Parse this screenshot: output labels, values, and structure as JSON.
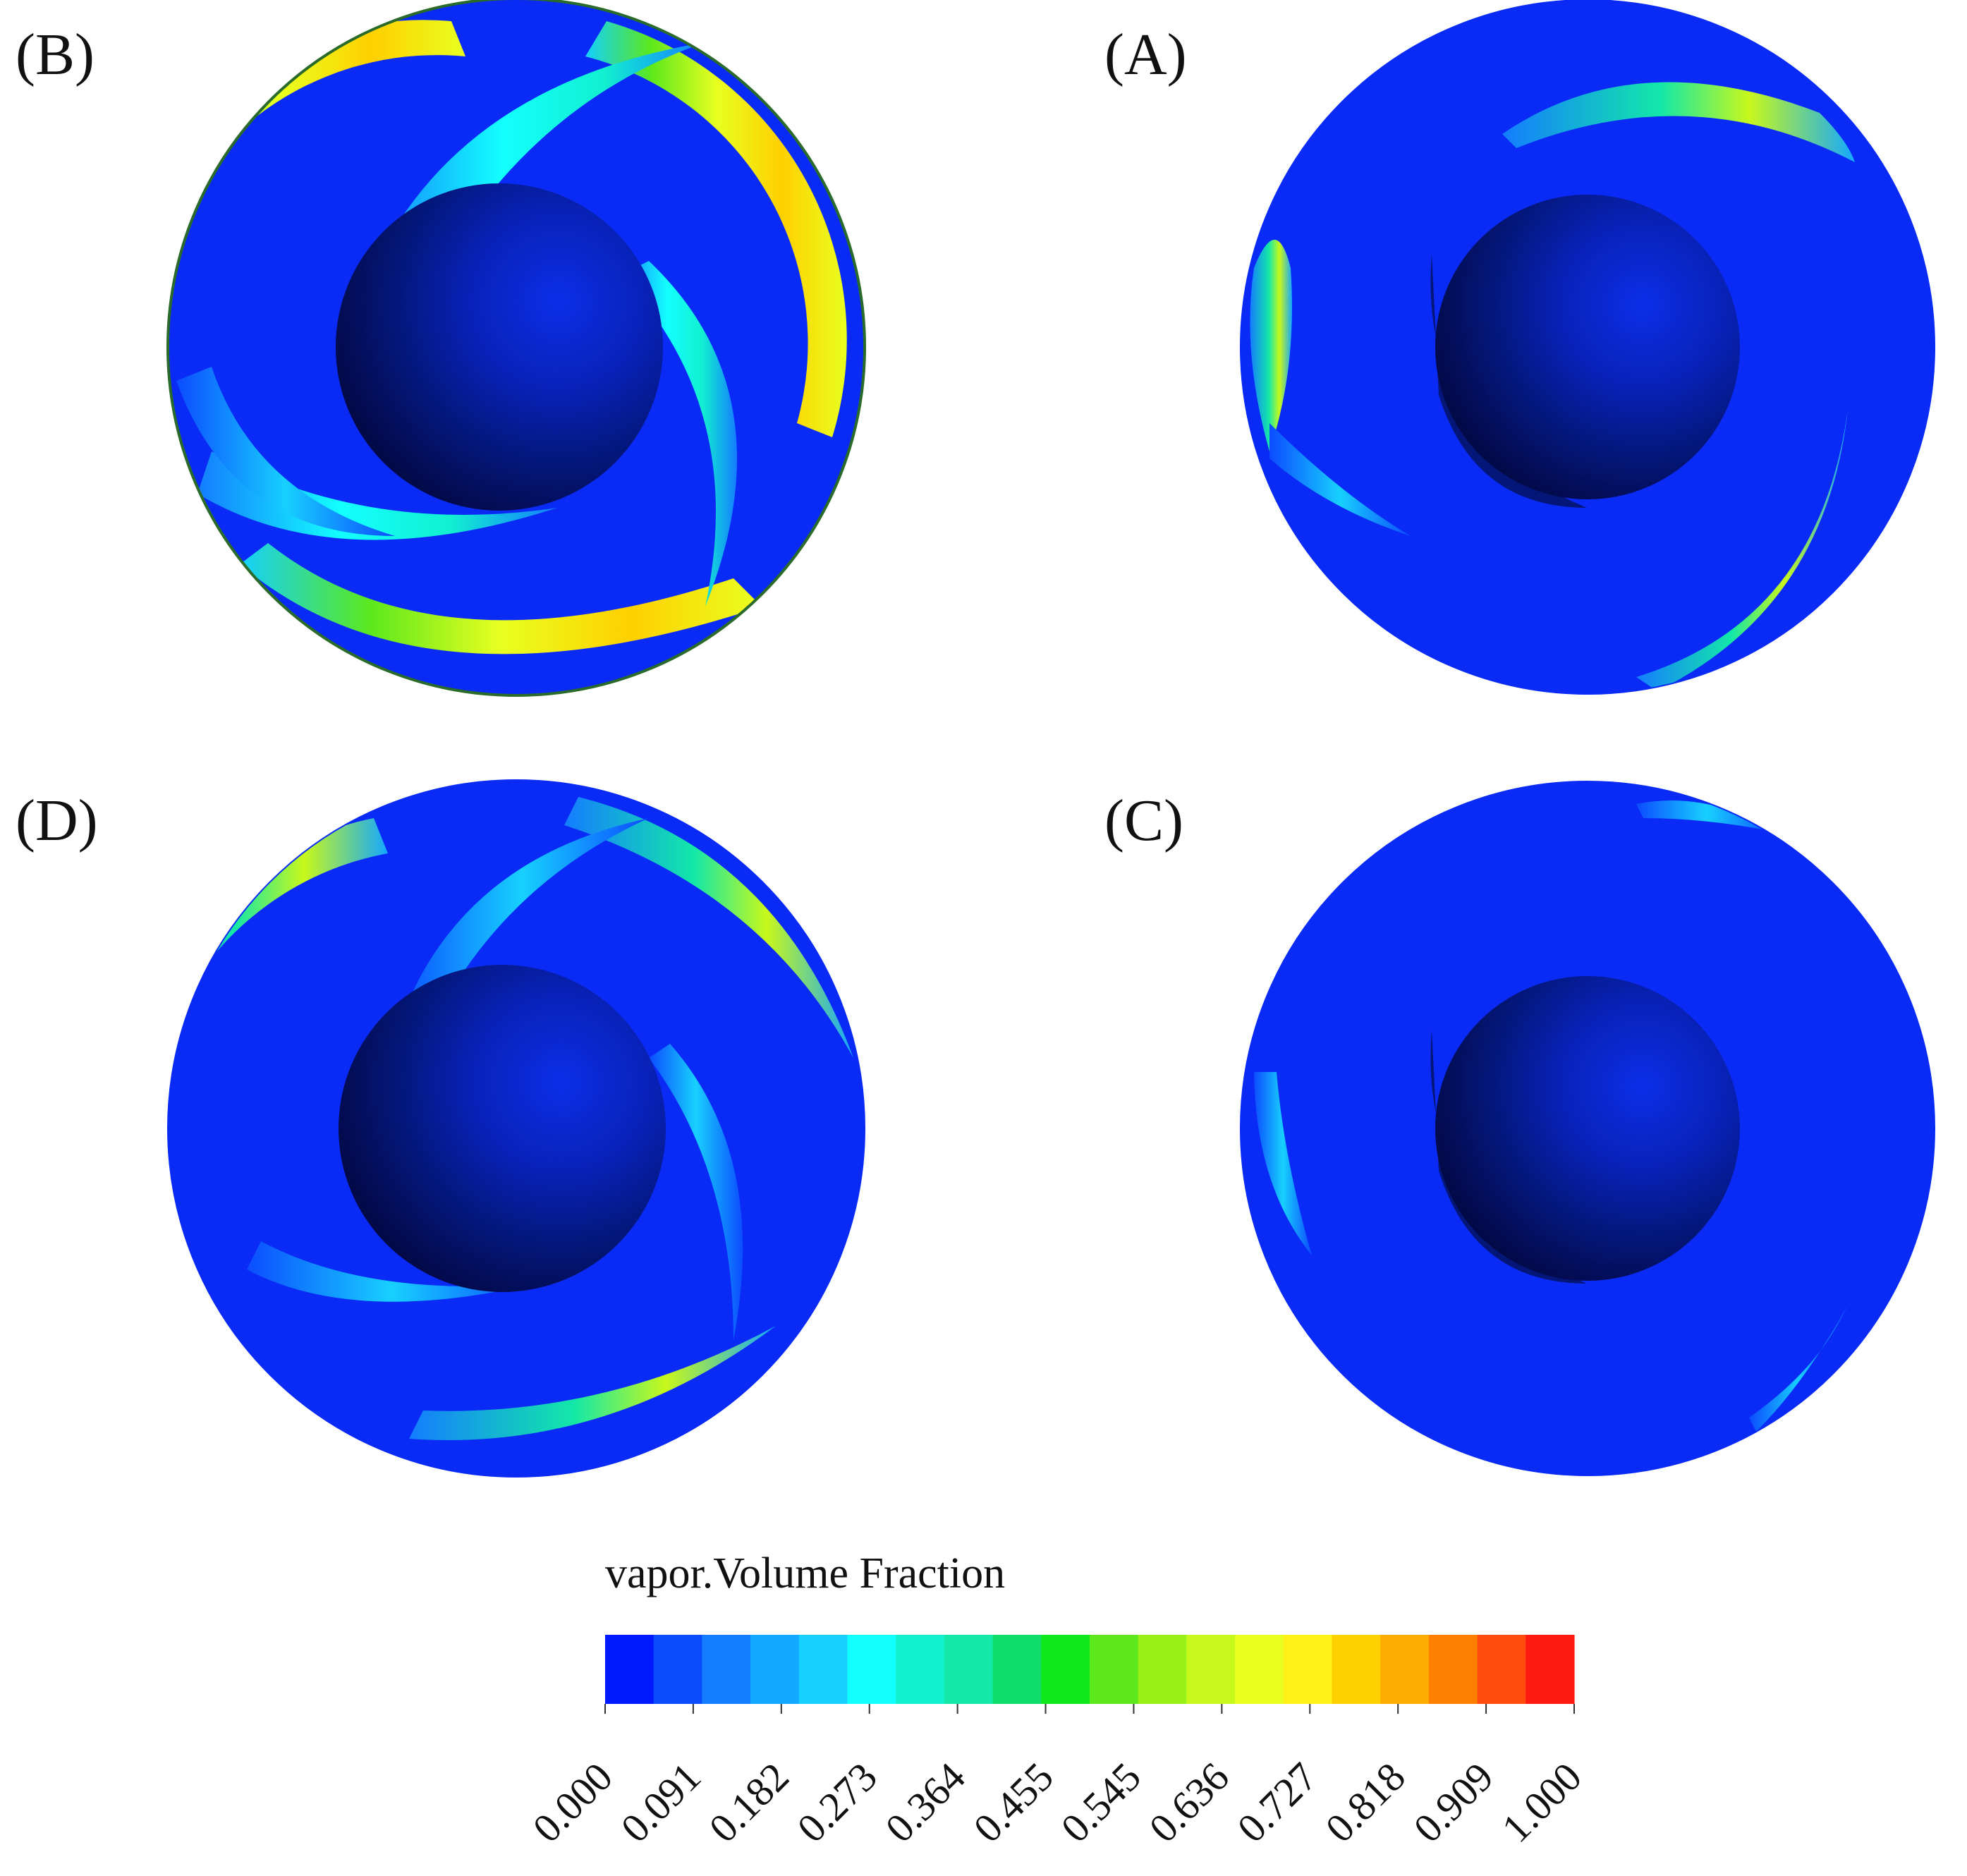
{
  "panels": [
    {
      "id": "B",
      "label": "(B)"
    },
    {
      "id": "A",
      "label": "(A)"
    },
    {
      "id": "D",
      "label": "(D)"
    },
    {
      "id": "C",
      "label": "(C)"
    }
  ],
  "legend": {
    "title": "vapor.Volume Fraction",
    "colors": [
      "#0019ff",
      "#0c4cff",
      "#147cff",
      "#13a8ff",
      "#17d0ff",
      "#13ffff",
      "#12f0d0",
      "#13e8a8",
      "#0fdc6a",
      "#11e81b",
      "#5ce81c",
      "#97f018",
      "#c8f81b",
      "#e8ff20",
      "#fff018",
      "#ffd000",
      "#ffac00",
      "#ff8000",
      "#ff4c0c",
      "#ff1a0f"
    ],
    "ticks": [
      "0.000",
      "0.091",
      "0.182",
      "0.273",
      "0.364",
      "0.455",
      "0.545",
      "0.636",
      "0.727",
      "0.818",
      "0.909",
      "1.000"
    ]
  },
  "colors": {
    "liquid": "#0a2bf5",
    "hub_dark": "#02063a",
    "hub_light": "#0c2ee8"
  }
}
